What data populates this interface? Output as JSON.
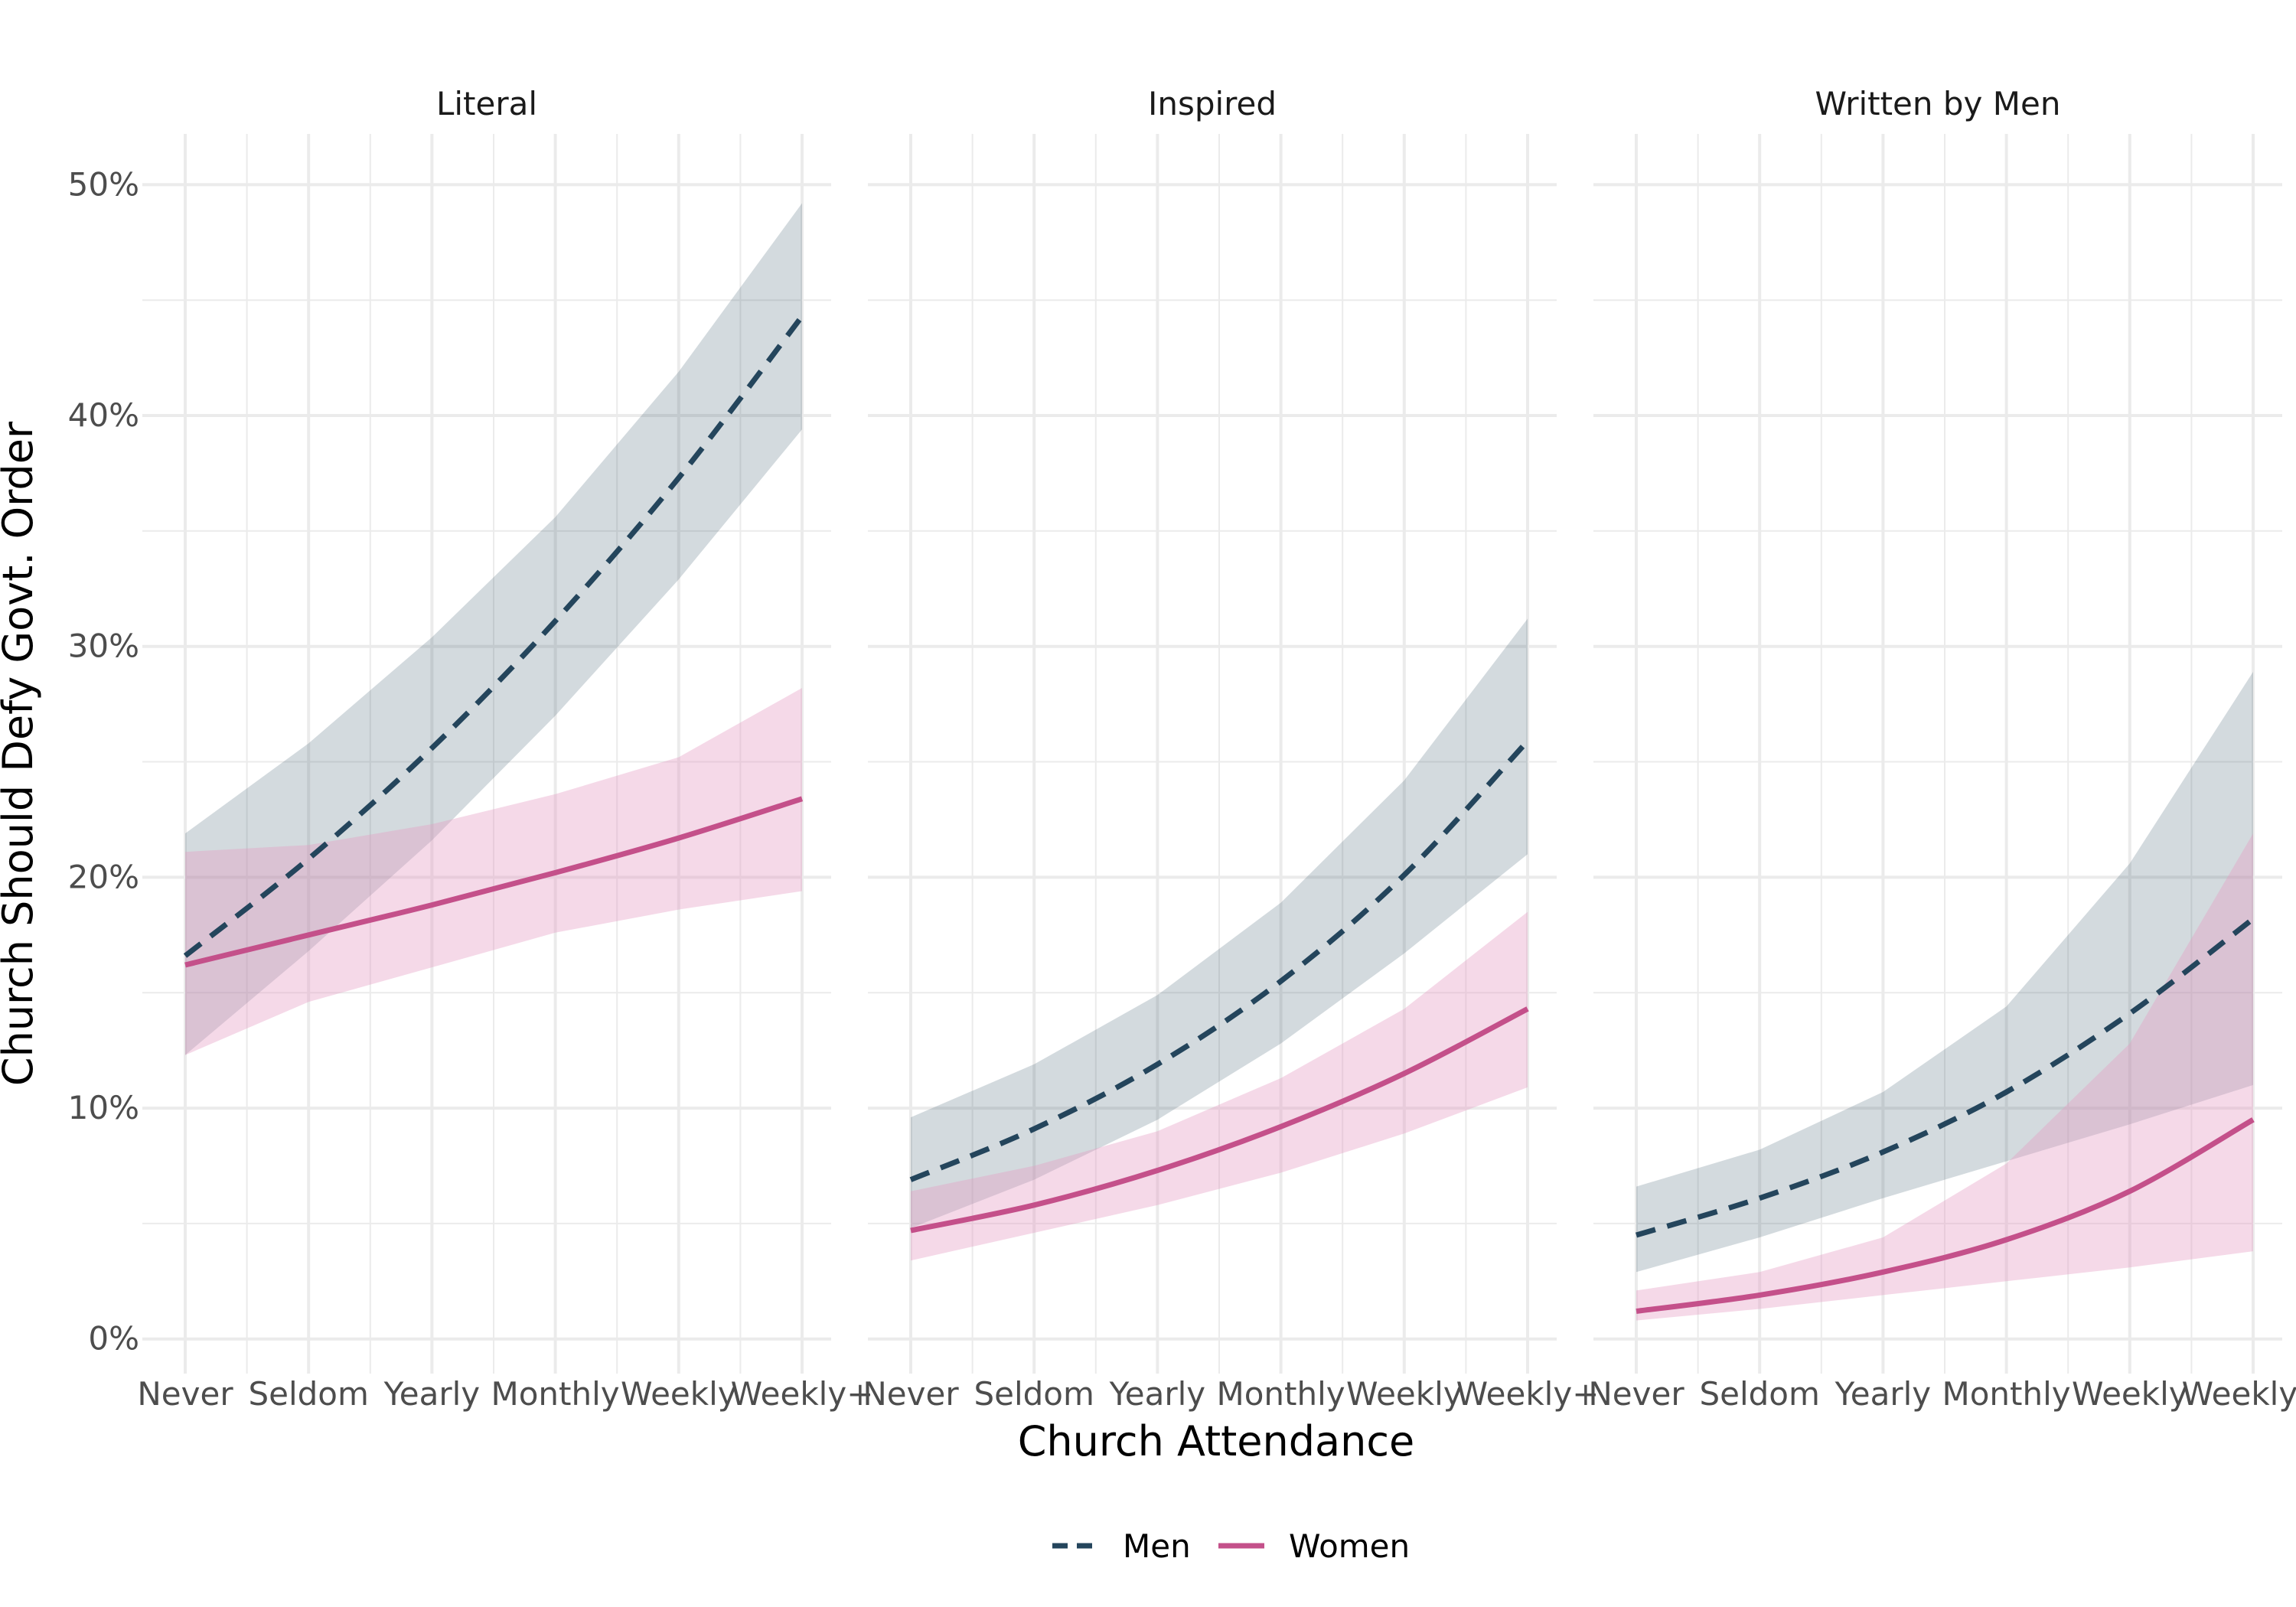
{
  "chart_data": {
    "type": "line",
    "xlabel": "Church Attendance",
    "ylabel": "Church Should Defy Govt. Order",
    "x_categories": [
      "Never",
      "Seldom",
      "Yearly",
      "Monthly",
      "Weekly",
      "Weekly+"
    ],
    "x_minor_ticks": true,
    "y_ticks": [
      "0%",
      "10%",
      "20%",
      "30%",
      "40%",
      "50%"
    ],
    "y_range_percent": [
      -1.5,
      52.2
    ],
    "grid": true,
    "legend_position": "bottom",
    "legend": [
      {
        "name": "Men",
        "color": "#24455c",
        "dash": true
      },
      {
        "name": "Women",
        "color": "#c4508a",
        "dash": false
      }
    ],
    "ribbon_colors": {
      "Men": "#24455c",
      "Women": "#e49cc3"
    },
    "panels": [
      {
        "title": "Literal",
        "series": [
          {
            "name": "Men",
            "values": [
              16.6,
              20.8,
              25.6,
              31.1,
              37.3,
              44.3
            ],
            "lower": [
              12.3,
              16.8,
              21.6,
              27.0,
              32.9,
              39.4
            ],
            "upper": [
              21.9,
              25.8,
              30.4,
              35.6,
              41.9,
              49.2
            ]
          },
          {
            "name": "Women",
            "values": [
              16.2,
              17.5,
              18.8,
              20.2,
              21.7,
              23.4
            ],
            "lower": [
              12.3,
              14.6,
              16.1,
              17.6,
              18.6,
              19.4
            ],
            "upper": [
              21.1,
              21.4,
              22.3,
              23.6,
              25.2,
              28.2
            ]
          }
        ]
      },
      {
        "title": "Inspired",
        "series": [
          {
            "name": "Men",
            "values": [
              6.9,
              9.1,
              11.9,
              15.5,
              20.1,
              25.9
            ],
            "lower": [
              4.8,
              6.9,
              9.5,
              12.8,
              16.7,
              21.0
            ],
            "upper": [
              9.6,
              11.9,
              14.9,
              18.9,
              24.2,
              31.2
            ]
          },
          {
            "name": "Women",
            "values": [
              4.7,
              5.8,
              7.3,
              9.2,
              11.5,
              14.3
            ],
            "lower": [
              3.4,
              4.6,
              5.8,
              7.2,
              8.9,
              10.9
            ],
            "upper": [
              6.4,
              7.5,
              9.0,
              11.3,
              14.3,
              18.5
            ]
          }
        ]
      },
      {
        "title": "Written by Men",
        "series": [
          {
            "name": "Men",
            "values": [
              4.5,
              6.1,
              8.1,
              10.7,
              14.1,
              18.2
            ],
            "lower": [
              2.9,
              4.4,
              6.1,
              7.7,
              9.3,
              11.0
            ],
            "upper": [
              6.6,
              8.2,
              10.7,
              14.4,
              20.6,
              28.9
            ]
          },
          {
            "name": "Women",
            "values": [
              1.2,
              1.9,
              2.9,
              4.3,
              6.4,
              9.5
            ],
            "lower": [
              0.8,
              1.3,
              1.9,
              2.5,
              3.1,
              3.8
            ],
            "upper": [
              2.1,
              2.9,
              4.4,
              7.6,
              12.8,
              21.9
            ]
          }
        ]
      }
    ]
  }
}
